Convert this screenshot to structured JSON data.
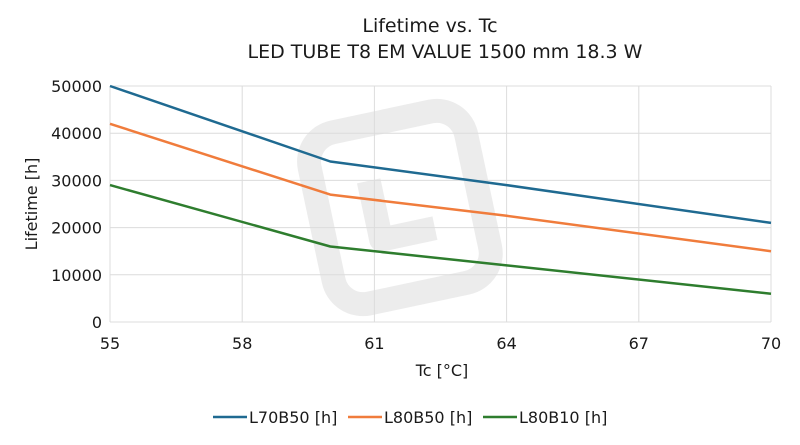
{
  "chart_data": {
    "type": "line",
    "title": "Lifetime vs. Tc",
    "subtitle": "LED TUBE T8 EM VALUE 1500 mm 18.3 W",
    "xlabel": "Tc [°C]",
    "ylabel": "Lifetime [h]",
    "x": [
      55,
      60,
      64,
      70
    ],
    "xlim": [
      55,
      70
    ],
    "ylim": [
      0,
      50000
    ],
    "xticks": [
      "55",
      "58",
      "61",
      "64",
      "67",
      "70"
    ],
    "xtick_values": [
      55,
      58,
      61,
      64,
      67,
      70
    ],
    "yticks": [
      "0",
      "10000",
      "20000",
      "30000",
      "40000",
      "50000"
    ],
    "ytick_values": [
      0,
      10000,
      20000,
      30000,
      40000,
      50000
    ],
    "grid": true,
    "legend_position": "bottom",
    "series": [
      {
        "name": "L70B50 [h]",
        "color": "#1f6a91",
        "values": [
          50000,
          34000,
          29000,
          21000
        ]
      },
      {
        "name": "L80B50 [h]",
        "color": "#f07c3c",
        "values": [
          42000,
          27000,
          22500,
          15000
        ]
      },
      {
        "name": "L80B10 [h]",
        "color": "#2e7d2e",
        "values": [
          29000,
          16000,
          12000,
          6000
        ]
      }
    ]
  }
}
